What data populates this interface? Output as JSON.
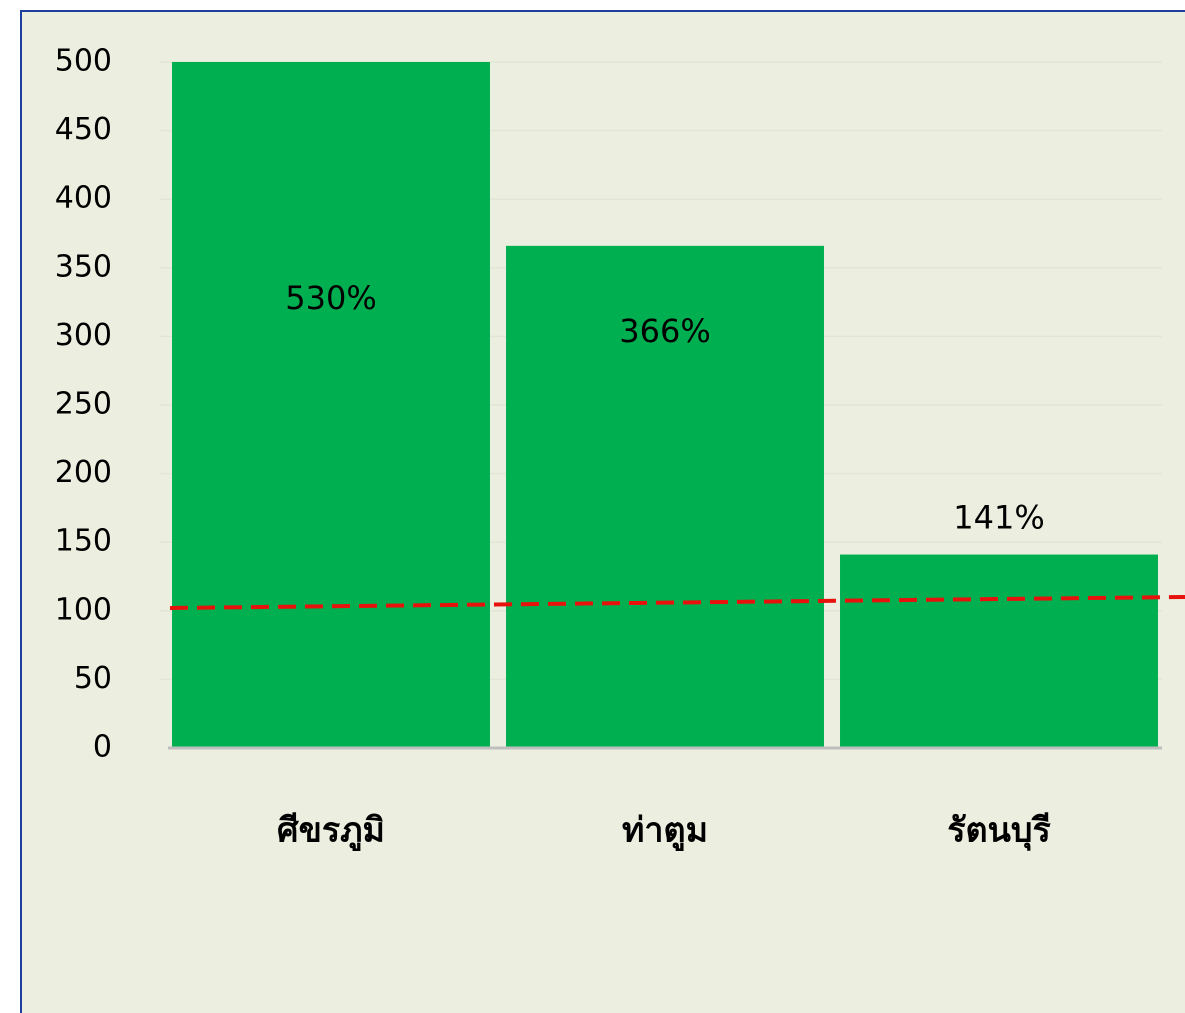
{
  "chart_data": {
    "type": "bar",
    "categories": [
      "ศีขรภูมิ",
      "ท่าตูม",
      "รัตนบุรี"
    ],
    "values": [
      530,
      366,
      141
    ],
    "value_labels": [
      "530%",
      "366%",
      "141%"
    ],
    "color": "#00b050",
    "ylim": [
      0,
      500
    ],
    "yticks": [
      0,
      50,
      100,
      150,
      200,
      250,
      300,
      350,
      400,
      450,
      500
    ],
    "grid": true
  }
}
